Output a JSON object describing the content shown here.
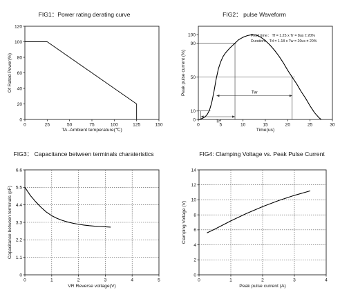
{
  "chart_data": [
    {
      "id": "fig1",
      "type": "line",
      "title": "FIG1：Power rating derating curve",
      "xlabel": "TA -Ambient temperature(℃)",
      "ylabel": "Of Rated Power(%)",
      "xlim": [
        0,
        150
      ],
      "ylim": [
        0,
        120
      ],
      "x_ticks": [
        0,
        25,
        50,
        75,
        100,
        125,
        150
      ],
      "y_ticks": [
        0,
        20,
        40,
        60,
        80,
        100,
        120
      ],
      "grid": false,
      "series": [
        {
          "x": [
            0,
            25,
            125,
            125
          ],
          "y": [
            100,
            100,
            20,
            0
          ]
        }
      ]
    },
    {
      "id": "fig2",
      "type": "line",
      "title": "FIG2： pulse  Waveform",
      "xlabel": "Time(us)",
      "ylabel": "Peak pulse current (%)",
      "xlim": [
        0,
        30
      ],
      "ylim": [
        0,
        110
      ],
      "x_ticks": [
        0,
        5,
        10,
        15,
        20,
        25,
        30
      ],
      "y_ticks": [
        0,
        10,
        50,
        90,
        100
      ],
      "grid": false,
      "annotations": [
        "Front time： Tf = 1.25 x Tr = 8us ± 20%",
        "Duration： Td = 1.18 x Tw = 20us ± 20%",
        "Tr",
        "Tw"
      ],
      "series": [
        {
          "x": [
            0,
            0.5,
            1,
            1.5,
            2,
            2.5,
            3,
            3.5,
            4,
            4.5,
            5,
            5.5,
            6,
            7,
            8,
            9,
            10,
            11,
            12,
            13,
            14,
            15,
            16,
            17,
            18,
            19,
            20,
            21,
            22,
            23,
            24,
            25,
            26,
            27,
            27.5
          ],
          "y": [
            0,
            0.5,
            1.5,
            3,
            6,
            11,
            20,
            33,
            48,
            60,
            68,
            74,
            78,
            84,
            89,
            94,
            97,
            99,
            100,
            99.5,
            97,
            93,
            88,
            82,
            75,
            67,
            58,
            50,
            42,
            33,
            25,
            16,
            8,
            2,
            0
          ]
        }
      ]
    },
    {
      "id": "fig3",
      "type": "line",
      "title": "FIG3： Capacitance between terminals charateristics",
      "xlabel": "VR Reverse voltage(V)",
      "ylabel": "Capacitance between terminals (pF)",
      "xlim": [
        0,
        5
      ],
      "ylim": [
        0,
        6.6
      ],
      "x_ticks": [
        0,
        1,
        2,
        3,
        4,
        5
      ],
      "y_ticks": [
        0,
        1.1,
        2.2,
        3.3,
        4.4,
        5.5,
        6.6
      ],
      "grid": true,
      "series": [
        {
          "x": [
            0,
            0.2,
            0.4,
            0.6,
            0.8,
            1.0,
            1.2,
            1.4,
            1.6,
            1.8,
            2.0,
            2.2,
            2.4,
            2.6,
            2.8,
            3.0,
            3.2
          ],
          "y": [
            5.5,
            5.0,
            4.6,
            4.25,
            3.95,
            3.72,
            3.55,
            3.42,
            3.32,
            3.24,
            3.18,
            3.13,
            3.09,
            3.06,
            3.04,
            3.02,
            3.0
          ]
        }
      ]
    },
    {
      "id": "fig4",
      "type": "line",
      "title": "FIG4: Clamping Voltage vs. Peak Pulse Current",
      "xlabel": "Peak pulse current (A)",
      "ylabel": "Clamping Voltage (V)",
      "xlim": [
        0,
        4
      ],
      "ylim": [
        0,
        14
      ],
      "x_ticks": [
        0,
        1,
        2,
        3,
        4
      ],
      "y_ticks": [
        0,
        2,
        4,
        6,
        8,
        10,
        12,
        14
      ],
      "grid": true,
      "series": [
        {
          "x": [
            0.25,
            0.5,
            1.0,
            1.5,
            2.0,
            2.5,
            3.0,
            3.5
          ],
          "y": [
            5.6,
            6.1,
            7.2,
            8.2,
            9.1,
            9.9,
            10.6,
            11.2
          ]
        }
      ]
    }
  ]
}
